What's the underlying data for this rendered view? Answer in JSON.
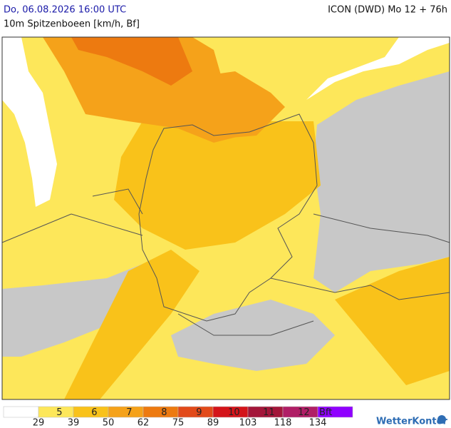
{
  "header": {
    "time": "Do, 06.08.2026 16:00 UTC",
    "model": "ICON (DWD) Mo 12 + 76h",
    "parameter": "10m Spitzenboeen [km/h, Bf]"
  },
  "legend": {
    "classes": [
      {
        "color": "#ffffff"
      },
      {
        "label": "5",
        "color": "#fde75a"
      },
      {
        "label": "6",
        "color": "#f9c21a"
      },
      {
        "label": "7",
        "color": "#f5a21a"
      },
      {
        "label": "8",
        "color": "#ed7a10"
      },
      {
        "label": "9",
        "color": "#e24a1a"
      },
      {
        "label": "10",
        "color": "#d4141a"
      },
      {
        "label": "11",
        "color": "#a3163a"
      },
      {
        "label": "12",
        "color": "#b01e66"
      },
      {
        "label": "Bft",
        "color": "#8f00ff"
      }
    ],
    "thresholds": [
      29,
      39,
      50,
      62,
      75,
      89,
      103,
      118,
      134
    ]
  },
  "logo": {
    "text": "WetterKontor"
  }
}
